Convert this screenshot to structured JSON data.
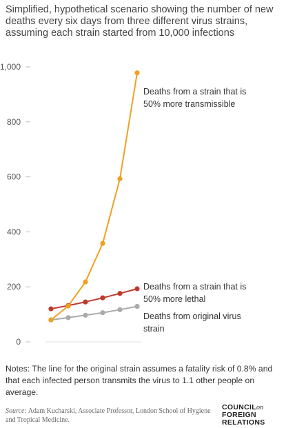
{
  "title": "Simplified, hypothetical scenario showing the number of new deaths every six days from three different virus strains, assuming each strain started from 10,000 infections",
  "chart_data": {
    "type": "line",
    "title": "Simplified, hypothetical scenario showing the number of new deaths every six days from three different virus strains, assuming each strain started from 10,000 infections",
    "xlabel": "",
    "ylabel": "",
    "x": [
      1,
      2,
      3,
      4,
      5,
      6
    ],
    "ylim": [
      0,
      1000
    ],
    "yticks": [
      0,
      200,
      400,
      600,
      800,
      1000
    ],
    "ytick_labels": [
      "0",
      "200",
      "400",
      "600",
      "800",
      "1,000"
    ],
    "grid": false,
    "legend": "direct labels at line ends",
    "series": [
      {
        "label_lines": [
          "Deaths from a strain that is",
          "50% more transmissible"
        ],
        "color": "#F0A020",
        "values": [
          80,
          130,
          218,
          358,
          593,
          978
        ]
      },
      {
        "label_lines": [
          "Deaths from a strain that is",
          "50% more lethal"
        ],
        "color": "#C0392B",
        "values": [
          120,
          132,
          145,
          160,
          176,
          193
        ]
      },
      {
        "label_lines": [
          "Deaths from original virus",
          "strain"
        ],
        "color": "#AAAAAA",
        "values": [
          80,
          88,
          97,
          106,
          117,
          129
        ]
      }
    ]
  },
  "notes": "Notes: The line for the original strain assumes a fatality risk of 0.8% and that each infected person transmits the virus to 1.1 other people on average.",
  "source": {
    "label": "Source:",
    "text": "Adam Kucharski, Associate Professor, London School of Hygiene and Tropical Medicine."
  },
  "logo": {
    "line1": "COUNCIL",
    "on": "on",
    "line2": "FOREIGN",
    "line3": "RELATIONS"
  }
}
